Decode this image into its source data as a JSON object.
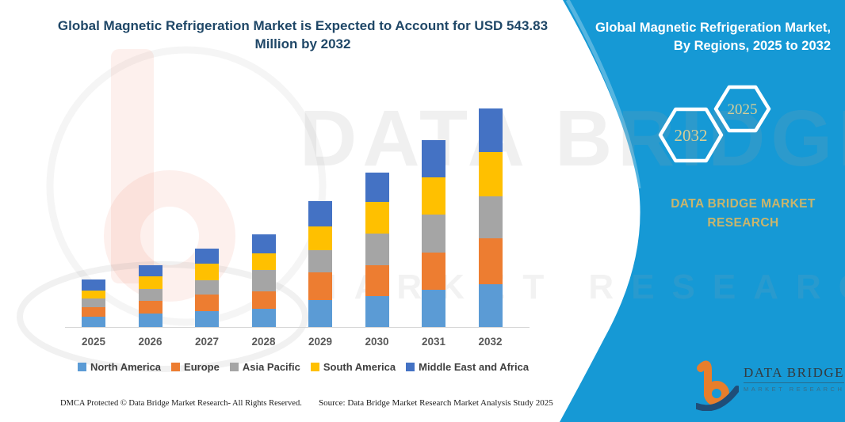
{
  "page": {
    "title": "Global Magnetic Refrigeration Market is Expected to Account for USD 543.83 Million by 2032",
    "footer": {
      "dmca": "DMCA Protected © Data Bridge Market Research- All Rights Reserved.",
      "source": "Source: Data Bridge Market Research Market Analysis Study 2025"
    }
  },
  "side_panel": {
    "heading_line1": "Global Magnetic Refrigeration Market,",
    "heading_line2": "By Regions, 2025 to 2032",
    "hexagons": [
      {
        "label": "2032"
      },
      {
        "label": "2025"
      }
    ],
    "brand_line1": "DATA BRIDGE MARKET",
    "brand_line2": "RESEARCH",
    "logo": {
      "name": "DATA BRIDGE",
      "sub": "MARKET RESEARCH"
    },
    "colors": {
      "panel_blue": "#1699D5",
      "edge_highlight": "rgba(255,255,255,0.28)",
      "gold_text": "#C9B56C",
      "hex_year_text": "#D8CE96"
    }
  },
  "watermark": {
    "line1": "DATA BRIDGE",
    "line2": "MARKET RESEARCH"
  },
  "chart_data": {
    "type": "bar",
    "stacked": true,
    "title": "Global Magnetic Refrigeration Market is Expected to Account for USD 543.83 Million by 2032",
    "unit": "USD Million",
    "categories": [
      "2025",
      "2026",
      "2027",
      "2028",
      "2029",
      "2030",
      "2031",
      "2032"
    ],
    "series": [
      {
        "name": "North America",
        "color": "#5B9BD5",
        "values": [
          26,
          33,
          39,
          45,
          67,
          77,
          93,
          106
        ]
      },
      {
        "name": "Europe",
        "color": "#ED7D31",
        "values": [
          24,
          32,
          41,
          43,
          69,
          77,
          93,
          114
        ]
      },
      {
        "name": "Asia Pacific",
        "color": "#A5A5A5",
        "values": [
          20,
          30,
          37,
          55,
          55,
          79,
          94,
          106
        ]
      },
      {
        "name": "South America",
        "color": "#FFC000",
        "values": [
          20,
          31,
          41,
          41,
          59,
          79,
          93,
          110
        ]
      },
      {
        "name": "Middle East and Africa",
        "color": "#4472C4",
        "values": [
          28,
          28,
          37,
          47,
          63,
          73,
          93,
          107.83
        ]
      }
    ],
    "xlabel": "",
    "ylabel": "",
    "grid": false,
    "legend_position": "bottom"
  }
}
